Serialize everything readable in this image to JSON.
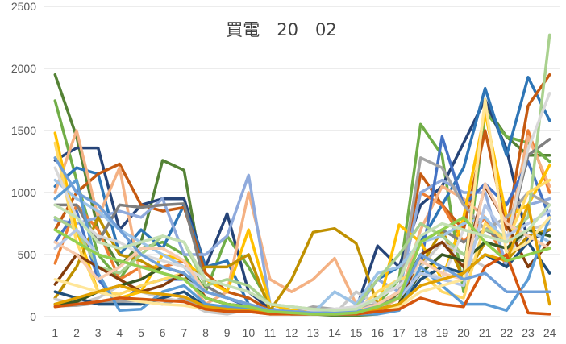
{
  "chart_data": {
    "type": "line",
    "title": "買電　20　02",
    "xlabel": "",
    "ylabel": "",
    "ylim": [
      0,
      2500
    ],
    "yticks": [
      0,
      500,
      1000,
      1500,
      2000,
      2500
    ],
    "x": [
      1,
      2,
      3,
      4,
      5,
      6,
      7,
      8,
      9,
      10,
      11,
      12,
      13,
      14,
      15,
      16,
      17,
      18,
      19,
      20,
      21,
      22,
      23,
      24
    ],
    "grid": true,
    "legend": "none",
    "series": [
      {
        "color": "#548235",
        "values": [
          1950,
          1450,
          700,
          400,
          600,
          1260,
          1180,
          200,
          150,
          100,
          50,
          30,
          20,
          10,
          10,
          20,
          200,
          500,
          400,
          350,
          1700,
          1450,
          1300,
          1300
        ]
      },
      {
        "color": "#70ad47",
        "values": [
          1740,
          1100,
          500,
          300,
          550,
          600,
          500,
          200,
          650,
          400,
          100,
          50,
          30,
          20,
          30,
          100,
          300,
          1550,
          1300,
          200,
          1650,
          1450,
          1400,
          1250
        ]
      },
      {
        "color": "#264478",
        "values": [
          1260,
          1360,
          1360,
          700,
          900,
          950,
          950,
          400,
          830,
          200,
          60,
          40,
          40,
          30,
          60,
          570,
          400,
          900,
          1050,
          1400,
          1750,
          1350,
          600,
          700
        ]
      },
      {
        "color": "#2e75b6",
        "values": [
          1050,
          1200,
          1150,
          500,
          700,
          550,
          900,
          400,
          450,
          100,
          50,
          40,
          30,
          40,
          60,
          300,
          400,
          600,
          900,
          1200,
          1840,
          1300,
          1930,
          1580
        ]
      },
      {
        "color": "#c55a11",
        "values": [
          700,
          1000,
          1150,
          1230,
          900,
          850,
          880,
          350,
          200,
          150,
          50,
          30,
          20,
          30,
          50,
          100,
          200,
          1150,
          900,
          700,
          1500,
          700,
          1700,
          1950
        ]
      },
      {
        "color": "#ed7d31",
        "values": [
          430,
          900,
          700,
          300,
          400,
          400,
          450,
          150,
          100,
          80,
          40,
          30,
          20,
          30,
          40,
          80,
          200,
          1000,
          900,
          600,
          800,
          400,
          1500,
          1000
        ]
      },
      {
        "color": "#f4b183",
        "values": [
          1000,
          1500,
          800,
          1200,
          300,
          400,
          350,
          100,
          200,
          1000,
          300,
          200,
          300,
          470,
          100,
          50,
          150,
          700,
          1050,
          950,
          800,
          600,
          1450,
          1050
        ]
      },
      {
        "color": "#8faadc",
        "values": [
          780,
          750,
          800,
          850,
          800,
          950,
          500,
          500,
          650,
          1140,
          100,
          50,
          40,
          30,
          50,
          300,
          200,
          1000,
          1100,
          1000,
          1000,
          400,
          900,
          950
        ]
      },
      {
        "color": "#4472c4",
        "values": [
          600,
          850,
          300,
          100,
          250,
          300,
          300,
          200,
          150,
          80,
          30,
          20,
          20,
          20,
          20,
          40,
          80,
          400,
          1450,
          900,
          1070,
          900,
          1250,
          800
        ]
      },
      {
        "color": "#ffc000",
        "values": [
          1480,
          700,
          200,
          150,
          200,
          500,
          450,
          300,
          200,
          700,
          100,
          50,
          40,
          30,
          30,
          50,
          740,
          600,
          300,
          800,
          1650,
          800,
          900,
          1220
        ]
      },
      {
        "color": "#bf9000",
        "values": [
          150,
          400,
          800,
          500,
          450,
          350,
          300,
          400,
          400,
          500,
          50,
          300,
          680,
          710,
          590,
          100,
          200,
          400,
          700,
          300,
          600,
          450,
          650,
          700
        ]
      },
      {
        "color": "#7f7f7f",
        "values": [
          900,
          900,
          600,
          900,
          880,
          900,
          910,
          250,
          150,
          100,
          50,
          40,
          30,
          30,
          40,
          100,
          150,
          600,
          700,
          600,
          700,
          600,
          1300,
          1430
        ]
      },
      {
        "color": "#a5a5a5",
        "values": [
          85,
          90,
          110,
          120,
          130,
          100,
          150,
          50,
          40,
          40,
          20,
          30,
          80,
          60,
          80,
          100,
          200,
          1280,
          1200,
          900,
          700,
          800,
          1000,
          900
        ]
      },
      {
        "color": "#c9c9c9",
        "values": [
          140,
          100,
          150,
          250,
          200,
          150,
          120,
          40,
          20,
          60,
          20,
          20,
          30,
          20,
          200,
          100,
          200,
          400,
          600,
          500,
          400,
          500,
          700,
          750
        ]
      },
      {
        "color": "#9dc3e6",
        "values": [
          1100,
          950,
          850,
          700,
          600,
          500,
          400,
          200,
          150,
          100,
          50,
          40,
          30,
          200,
          100,
          350,
          400,
          600,
          650,
          750,
          800,
          600,
          700,
          600
        ]
      },
      {
        "color": "#a9d18e",
        "values": [
          800,
          700,
          400,
          350,
          500,
          650,
          600,
          250,
          300,
          250,
          100,
          80,
          60,
          50,
          80,
          300,
          500,
          750,
          650,
          500,
          700,
          650,
          800,
          2270
        ]
      },
      {
        "color": "#ffd966",
        "values": [
          1400,
          600,
          200,
          180,
          250,
          300,
          350,
          150,
          100,
          80,
          40,
          30,
          20,
          30,
          40,
          200,
          300,
          350,
          200,
          150,
          750,
          600,
          1000,
          1100
        ]
      },
      {
        "color": "#d9d9d9",
        "values": [
          1200,
          800,
          650,
          600,
          500,
          450,
          400,
          300,
          250,
          200,
          100,
          80,
          50,
          60,
          80,
          150,
          250,
          400,
          300,
          700,
          650,
          600,
          1350,
          1800
        ]
      },
      {
        "color": "#843c0c",
        "values": [
          260,
          500,
          400,
          300,
          200,
          250,
          350,
          150,
          100,
          80,
          40,
          30,
          20,
          20,
          30,
          50,
          100,
          500,
          600,
          400,
          1050,
          750,
          400,
          600
        ]
      },
      {
        "color": "#1f4e79",
        "values": [
          200,
          150,
          100,
          100,
          100,
          150,
          200,
          80,
          60,
          50,
          30,
          20,
          20,
          20,
          30,
          50,
          80,
          300,
          400,
          350,
          500,
          400,
          600,
          350
        ]
      },
      {
        "color": "#385723",
        "values": [
          100,
          120,
          200,
          250,
          300,
          400,
          350,
          150,
          100,
          80,
          40,
          30,
          20,
          20,
          30,
          60,
          100,
          350,
          500,
          450,
          600,
          550,
          700,
          650
        ]
      },
      {
        "color": "#5b9bd5",
        "values": [
          950,
          1100,
          350,
          50,
          60,
          200,
          250,
          100,
          80,
          60,
          30,
          20,
          20,
          20,
          20,
          20,
          50,
          400,
          250,
          100,
          100,
          50,
          300,
          800
        ]
      },
      {
        "color": "#f8cbad",
        "values": [
          600,
          500,
          300,
          400,
          550,
          550,
          450,
          200,
          150,
          100,
          50,
          40,
          30,
          30,
          40,
          100,
          200,
          450,
          350,
          300,
          1070,
          750,
          650,
          550
        ]
      },
      {
        "color": "#b4c7e7",
        "values": [
          550,
          700,
          500,
          450,
          400,
          350,
          300,
          200,
          150,
          100,
          50,
          40,
          30,
          30,
          40,
          80,
          150,
          350,
          300,
          250,
          900,
          650,
          750,
          850
        ]
      },
      {
        "color": "#ffe699",
        "values": [
          300,
          250,
          200,
          150,
          120,
          100,
          90,
          60,
          40,
          40,
          20,
          20,
          20,
          20,
          20,
          40,
          80,
          200,
          250,
          300,
          1750,
          500,
          600,
          800
        ]
      },
      {
        "color": "#e2a100",
        "values": [
          100,
          150,
          200,
          250,
          200,
          180,
          160,
          80,
          60,
          50,
          30,
          20,
          20,
          20,
          30,
          60,
          100,
          250,
          300,
          350,
          500,
          450,
          900,
          100
        ]
      },
      {
        "color": "#d4550d",
        "values": [
          80,
          100,
          120,
          150,
          140,
          130,
          120,
          60,
          40,
          40,
          20,
          20,
          20,
          20,
          20,
          40,
          60,
          150,
          100,
          80,
          400,
          500,
          30,
          20
        ]
      },
      {
        "color": "#6f9fd8",
        "values": [
          1280,
          1000,
          900,
          700,
          500,
          400,
          350,
          200,
          150,
          100,
          50,
          40,
          30,
          30,
          40,
          80,
          150,
          500,
          400,
          300,
          350,
          200,
          200,
          200
        ]
      },
      {
        "color": "#92d050",
        "values": [
          700,
          600,
          500,
          450,
          400,
          350,
          300,
          150,
          100,
          80,
          40,
          30,
          20,
          20,
          30,
          80,
          150,
          600,
          700,
          800,
          600,
          450,
          500,
          550
        ]
      },
      {
        "color": "#c5e0b4",
        "values": [
          900,
          800,
          600,
          550,
          600,
          650,
          600,
          300,
          250,
          200,
          100,
          80,
          60,
          50,
          60,
          150,
          300,
          650,
          750,
          700,
          650,
          600,
          700,
          900
        ]
      }
    ]
  }
}
